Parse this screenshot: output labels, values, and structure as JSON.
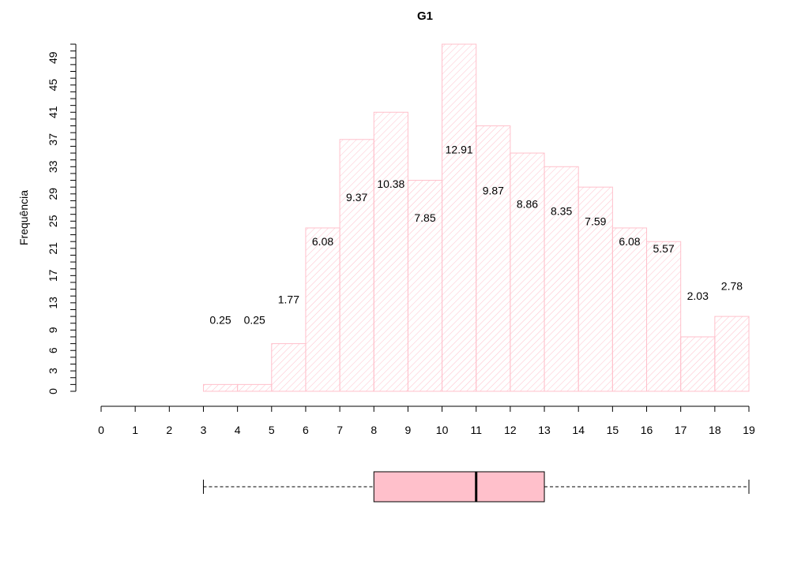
{
  "chart_data": {
    "type": "bar",
    "title": "G1",
    "ylabel": "Frequência",
    "xlabel": "",
    "bin_edges": [
      0,
      1,
      2,
      3,
      4,
      5,
      6,
      7,
      8,
      9,
      10,
      11,
      12,
      13,
      14,
      15,
      16,
      17,
      18,
      19
    ],
    "values": [
      0,
      0,
      0,
      1,
      1,
      7,
      24,
      37,
      41,
      31,
      51,
      39,
      35,
      33,
      30,
      24,
      22,
      8,
      11
    ],
    "percent_labels": [
      "",
      "",
      "",
      "0.25",
      "0.25",
      "1.77",
      "6.08",
      "9.37",
      "10.38",
      "7.85",
      "12.91",
      "9.87",
      "8.86",
      "8.35",
      "7.59",
      "6.08",
      "5.57",
      "2.03",
      "2.78"
    ],
    "x_ticks": [
      0,
      1,
      2,
      3,
      4,
      5,
      6,
      7,
      8,
      9,
      10,
      11,
      12,
      13,
      14,
      15,
      16,
      17,
      18,
      19
    ],
    "y_ticks": [
      0,
      3,
      6,
      9,
      13,
      17,
      21,
      25,
      29,
      33,
      37,
      41,
      45,
      49
    ],
    "ylim": [
      0,
      51
    ],
    "xlim": [
      0,
      19
    ],
    "bar_color": "#ffc0cb",
    "bar_fill": "hatched",
    "boxplot": {
      "min": 3,
      "q1": 8,
      "median": 11,
      "q3": 13,
      "max": 19,
      "fill": "#ffc0cb"
    }
  }
}
